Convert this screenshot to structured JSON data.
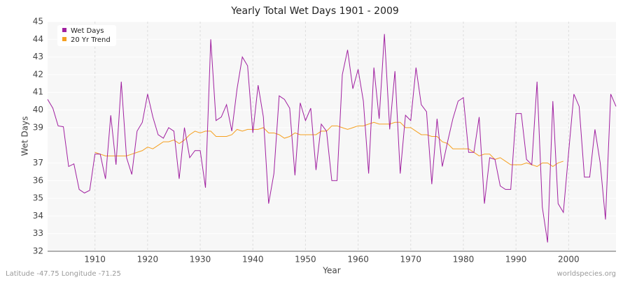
{
  "chart_data": {
    "type": "line",
    "title": "Yearly Total Wet Days 1901 - 2009",
    "x_label": "Year",
    "y_label": "Wet Days",
    "footer_left": "Latitude -47.75 Longitude -71.25",
    "footer_right": "worldspecies.org",
    "x": [
      1901,
      1902,
      1903,
      1904,
      1905,
      1906,
      1907,
      1908,
      1909,
      1910,
      1911,
      1912,
      1913,
      1914,
      1915,
      1916,
      1917,
      1918,
      1919,
      1920,
      1921,
      1922,
      1923,
      1924,
      1925,
      1926,
      1927,
      1928,
      1929,
      1930,
      1931,
      1932,
      1933,
      1934,
      1935,
      1936,
      1937,
      1938,
      1939,
      1940,
      1941,
      1942,
      1943,
      1944,
      1945,
      1946,
      1947,
      1948,
      1949,
      1950,
      1951,
      1952,
      1953,
      1954,
      1955,
      1956,
      1957,
      1958,
      1959,
      1960,
      1961,
      1962,
      1963,
      1964,
      1965,
      1966,
      1967,
      1968,
      1969,
      1970,
      1971,
      1972,
      1973,
      1974,
      1975,
      1976,
      1977,
      1978,
      1979,
      1980,
      1981,
      1982,
      1983,
      1984,
      1985,
      1986,
      1987,
      1988,
      1989,
      1990,
      1991,
      1992,
      1993,
      1994,
      1995,
      1996,
      1997,
      1998,
      1999,
      2000,
      2001,
      2002,
      2003,
      2004,
      2005,
      2006,
      2007,
      2008,
      2009
    ],
    "series": [
      {
        "name": "Wet Days",
        "color": "#a020a0",
        "values": [
          40.6,
          40.1,
          39.1,
          39.05,
          36.8,
          36.95,
          35.5,
          35.3,
          35.45,
          37.5,
          37.5,
          36.1,
          39.7,
          36.9,
          41.6,
          37.3,
          36.35,
          38.8,
          39.3,
          40.9,
          39.6,
          38.6,
          38.4,
          39.0,
          38.8,
          36.1,
          39.0,
          37.3,
          37.7,
          37.7,
          35.6,
          44.0,
          39.4,
          39.6,
          40.3,
          38.8,
          41.2,
          43.0,
          42.5,
          38.7,
          41.4,
          39.6,
          34.7,
          36.4,
          40.8,
          40.6,
          40.1,
          36.3,
          40.4,
          39.4,
          40.1,
          36.6,
          39.2,
          38.8,
          36.0,
          36.0,
          42.0,
          43.4,
          41.2,
          42.3,
          40.5,
          36.4,
          42.4,
          39.5,
          44.3,
          38.9,
          42.2,
          36.4,
          39.7,
          39.4,
          42.4,
          40.3,
          39.9,
          35.8,
          39.5,
          36.8,
          38.2,
          39.5,
          40.5,
          40.7,
          37.6,
          37.6,
          39.6,
          34.7,
          37.3,
          37.2,
          35.7,
          35.5,
          35.5,
          39.8,
          39.8,
          37.2,
          36.9,
          41.6,
          34.5,
          32.5,
          40.5,
          34.7,
          34.2,
          37.6,
          40.9,
          40.2,
          36.2,
          36.2,
          38.9,
          37.0,
          33.8,
          40.9,
          40.2
        ]
      },
      {
        "name": "20 Yr Trend",
        "color": "#f5a020",
        "values": [
          null,
          null,
          null,
          null,
          null,
          null,
          null,
          null,
          null,
          37.6,
          37.5,
          37.4,
          37.4,
          37.4,
          37.4,
          37.4,
          37.5,
          37.6,
          37.7,
          37.9,
          37.8,
          38.0,
          38.2,
          38.2,
          38.3,
          38.1,
          38.3,
          38.6,
          38.8,
          38.7,
          38.8,
          38.8,
          38.5,
          38.5,
          38.5,
          38.6,
          38.9,
          38.8,
          38.9,
          38.9,
          38.9,
          39.0,
          38.7,
          38.7,
          38.6,
          38.4,
          38.5,
          38.7,
          38.6,
          38.6,
          38.6,
          38.6,
          38.8,
          38.8,
          39.1,
          39.1,
          39.0,
          38.9,
          39.0,
          39.1,
          39.1,
          39.2,
          39.3,
          39.2,
          39.2,
          39.2,
          39.3,
          39.3,
          39.0,
          39.0,
          38.8,
          38.6,
          38.6,
          38.5,
          38.5,
          38.2,
          38.1,
          37.8,
          37.8,
          37.8,
          37.8,
          37.6,
          37.4,
          37.5,
          37.5,
          37.2,
          37.3,
          37.1,
          36.9,
          36.9,
          36.9,
          37.0,
          36.9,
          36.8,
          37.0,
          37.0,
          36.8,
          37.0,
          37.1,
          null,
          null,
          null,
          null,
          null,
          null,
          null,
          null,
          null,
          null
        ]
      }
    ],
    "xlim": [
      1901,
      2009
    ],
    "xticks": [
      1910,
      1920,
      1930,
      1940,
      1950,
      1960,
      1970,
      1980,
      1990,
      2000
    ],
    "ylim": [
      32,
      45
    ],
    "yticks": [
      45,
      44,
      43,
      42,
      41,
      40,
      39,
      37,
      36,
      35,
      34,
      33,
      32
    ],
    "grid": true,
    "legend": "top-left"
  }
}
